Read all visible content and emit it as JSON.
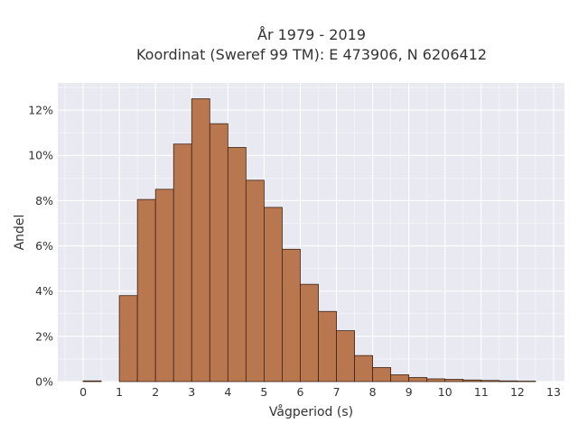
{
  "chart_data": {
    "type": "bar",
    "title_line1": "År 1979 - 2019",
    "title_line2": "Koordinat (Sweref 99 TM): E 473906, N 6206412",
    "xlabel": "Vågperiod (s)",
    "ylabel": "Andel",
    "xlim": [
      -0.7,
      13.3
    ],
    "ylim": [
      0,
      13.2
    ],
    "x_ticks": [
      0,
      1,
      2,
      3,
      4,
      5,
      6,
      7,
      8,
      9,
      10,
      11,
      12,
      13
    ],
    "y_ticks": [
      0,
      2,
      4,
      6,
      8,
      10,
      12
    ],
    "y_tick_labels": [
      "0%",
      "2%",
      "4%",
      "6%",
      "8%",
      "10%",
      "12%"
    ],
    "bin_width": 0.5,
    "bar_color": "#b9774f",
    "edge_color": "#3d2314",
    "background": "#e9e9f1",
    "grid": true,
    "bins": [
      {
        "start": 0.0,
        "value": 0.03
      },
      {
        "start": 1.0,
        "value": 3.8
      },
      {
        "start": 1.5,
        "value": 8.05
      },
      {
        "start": 2.0,
        "value": 8.5
      },
      {
        "start": 2.5,
        "value": 10.5
      },
      {
        "start": 3.0,
        "value": 12.5
      },
      {
        "start": 3.5,
        "value": 11.4
      },
      {
        "start": 4.0,
        "value": 10.35
      },
      {
        "start": 4.5,
        "value": 8.9
      },
      {
        "start": 5.0,
        "value": 7.7
      },
      {
        "start": 5.5,
        "value": 5.85
      },
      {
        "start": 6.0,
        "value": 4.3
      },
      {
        "start": 6.5,
        "value": 3.1
      },
      {
        "start": 7.0,
        "value": 2.25
      },
      {
        "start": 7.5,
        "value": 1.15
      },
      {
        "start": 8.0,
        "value": 0.62
      },
      {
        "start": 8.5,
        "value": 0.3
      },
      {
        "start": 9.0,
        "value": 0.18
      },
      {
        "start": 9.5,
        "value": 0.12
      },
      {
        "start": 10.0,
        "value": 0.1
      },
      {
        "start": 10.5,
        "value": 0.07
      },
      {
        "start": 11.0,
        "value": 0.05
      },
      {
        "start": 11.5,
        "value": 0.03
      },
      {
        "start": 12.0,
        "value": 0.02
      }
    ]
  }
}
